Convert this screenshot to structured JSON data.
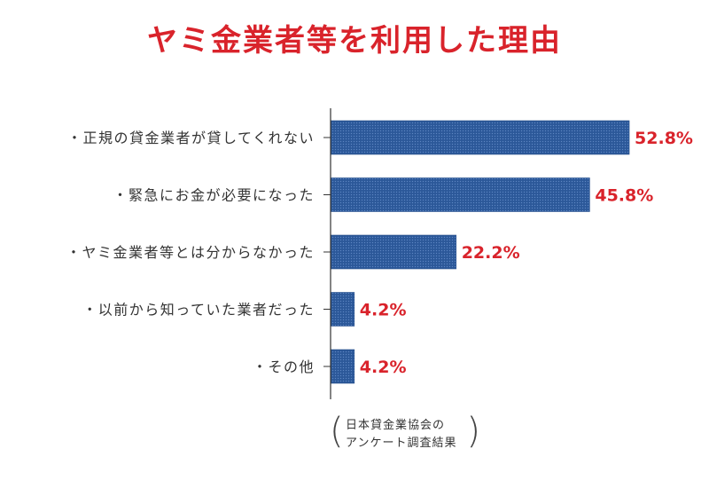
{
  "title": "ヤミ金業者等を利用した理由",
  "source": {
    "line1": "日本貸金業協会の",
    "line2": "アンケート調査結果"
  },
  "colors": {
    "title": "#d9232b",
    "bar": "#2f5c9e",
    "value_label": "#d9232b",
    "axis": "#333333"
  },
  "chart_data": {
    "type": "bar",
    "orientation": "horizontal",
    "title": "ヤミ金業者等を利用した理由",
    "categories": [
      "・正規の貸金業者が貸してくれない",
      "・緊急にお金が必要になった",
      "・ヤミ金業者等とは分からなかった",
      "・以前から知っていた業者だった",
      "・その他"
    ],
    "values": [
      52.8,
      45.8,
      22.2,
      4.2,
      4.2
    ],
    "value_labels": [
      "52.8%",
      "45.8%",
      "22.2%",
      "4.2%",
      "4.2%"
    ],
    "unit": "%",
    "xlim": [
      0,
      60
    ],
    "grid": false,
    "legend": "none"
  }
}
